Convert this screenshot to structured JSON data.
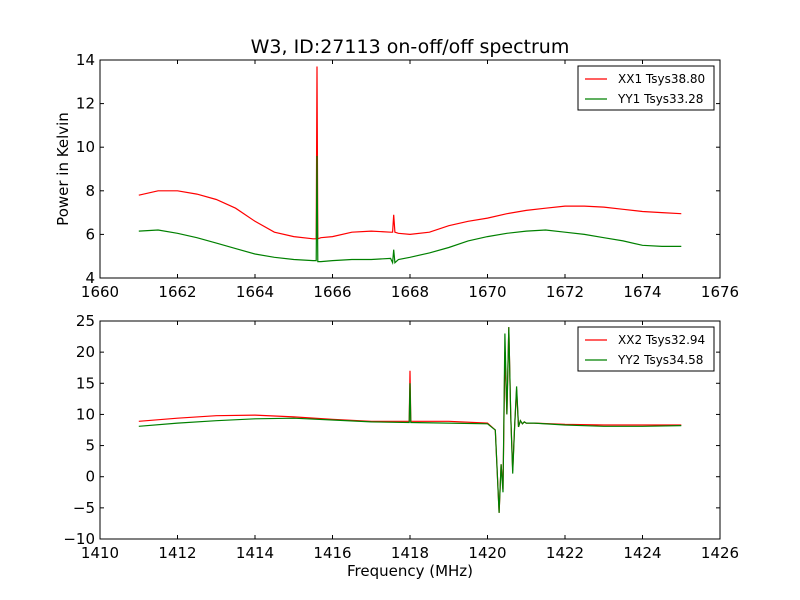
{
  "chart_data": [
    {
      "type": "line",
      "title": "W3, ID:27113 on-off/off spectrum",
      "xlabel": "",
      "ylabel": "Power in Kelvin",
      "xlim": [
        1660,
        1676
      ],
      "ylim": [
        4,
        14
      ],
      "xticks": [
        1660,
        1662,
        1664,
        1666,
        1668,
        1670,
        1672,
        1674,
        1676
      ],
      "yticks": [
        4,
        6,
        8,
        10,
        12,
        14
      ],
      "grid": false,
      "legend": "top-right",
      "series": [
        {
          "name": "XX1 Tsys38.80",
          "color": "#ff0000",
          "x": [
            1661.0,
            1661.5,
            1662.0,
            1662.5,
            1663.0,
            1663.5,
            1664.0,
            1664.5,
            1665.0,
            1665.5,
            1665.58,
            1665.6,
            1665.62,
            1665.7,
            1666.0,
            1666.5,
            1667.0,
            1667.5,
            1667.55,
            1667.58,
            1667.61,
            1667.7,
            1668.0,
            1668.5,
            1669.0,
            1669.5,
            1670.0,
            1670.5,
            1671.0,
            1671.5,
            1672.0,
            1672.5,
            1673.0,
            1673.5,
            1674.0,
            1674.5,
            1675.0
          ],
          "y": [
            7.8,
            8.0,
            8.0,
            7.85,
            7.6,
            7.2,
            6.6,
            6.1,
            5.9,
            5.8,
            5.8,
            13.7,
            5.8,
            5.85,
            5.9,
            6.1,
            6.15,
            6.1,
            6.1,
            6.9,
            6.1,
            6.05,
            6.0,
            6.1,
            6.4,
            6.6,
            6.75,
            6.95,
            7.1,
            7.2,
            7.3,
            7.3,
            7.25,
            7.15,
            7.05,
            7.0,
            6.95
          ]
        },
        {
          "name": "YY1 Tsys33.28",
          "color": "#008000",
          "x": [
            1661.0,
            1661.5,
            1662.0,
            1662.5,
            1663.0,
            1663.5,
            1664.0,
            1664.5,
            1665.0,
            1665.5,
            1665.58,
            1665.6,
            1665.62,
            1665.7,
            1666.0,
            1666.5,
            1667.0,
            1667.5,
            1667.55,
            1667.58,
            1667.61,
            1667.7,
            1668.0,
            1668.5,
            1669.0,
            1669.5,
            1670.0,
            1670.5,
            1671.0,
            1671.5,
            1672.0,
            1672.5,
            1673.0,
            1673.5,
            1674.0,
            1674.5,
            1675.0
          ],
          "y": [
            6.15,
            6.2,
            6.05,
            5.85,
            5.6,
            5.35,
            5.1,
            4.95,
            4.85,
            4.8,
            4.8,
            9.6,
            4.75,
            4.75,
            4.8,
            4.85,
            4.85,
            4.9,
            4.7,
            5.3,
            4.7,
            4.85,
            4.95,
            5.15,
            5.4,
            5.7,
            5.9,
            6.05,
            6.15,
            6.2,
            6.1,
            6.0,
            5.85,
            5.7,
            5.5,
            5.45,
            5.45
          ]
        }
      ]
    },
    {
      "type": "line",
      "title": "",
      "xlabel": "Frequency (MHz)",
      "ylabel": "",
      "xlim": [
        1410,
        1426
      ],
      "ylim": [
        -10,
        25
      ],
      "xticks": [
        1410,
        1412,
        1414,
        1416,
        1418,
        1420,
        1422,
        1424,
        1426
      ],
      "yticks": [
        -10,
        -5,
        0,
        5,
        10,
        15,
        20,
        25
      ],
      "grid": false,
      "legend": "top-right",
      "series": [
        {
          "name": "XX2 Tsys32.94",
          "color": "#ff0000",
          "x": [
            1411.0,
            1412.0,
            1413.0,
            1414.0,
            1415.0,
            1416.0,
            1417.0,
            1417.98,
            1418.0,
            1418.02,
            1419.0,
            1420.0,
            1420.2,
            1420.3,
            1420.35,
            1420.4,
            1420.45,
            1420.5,
            1420.55,
            1420.6,
            1420.65,
            1420.7,
            1420.75,
            1420.8,
            1420.85,
            1420.9,
            1420.95,
            1421.0,
            1421.2,
            1422.0,
            1423.0,
            1424.0,
            1425.0
          ],
          "y": [
            8.9,
            9.4,
            9.8,
            9.9,
            9.6,
            9.2,
            8.9,
            8.9,
            17.0,
            8.9,
            8.9,
            8.6,
            7.5,
            -5.8,
            2.0,
            -2.0,
            20.0,
            10.0,
            24.0,
            10.0,
            1.0,
            8.0,
            14.0,
            8.0,
            9.0,
            8.5,
            8.8,
            8.6,
            8.6,
            8.4,
            8.3,
            8.3,
            8.3
          ]
        },
        {
          "name": "YY2 Tsys34.58",
          "color": "#008000",
          "x": [
            1411.0,
            1412.0,
            1413.0,
            1414.0,
            1415.0,
            1416.0,
            1417.0,
            1417.98,
            1418.0,
            1418.02,
            1419.0,
            1420.0,
            1420.2,
            1420.3,
            1420.35,
            1420.4,
            1420.45,
            1420.5,
            1420.55,
            1420.6,
            1420.65,
            1420.7,
            1420.75,
            1420.8,
            1420.85,
            1420.9,
            1420.95,
            1421.0,
            1421.2,
            1422.0,
            1423.0,
            1424.0,
            1425.0
          ],
          "y": [
            8.1,
            8.6,
            9.0,
            9.3,
            9.4,
            9.1,
            8.8,
            8.7,
            15.0,
            8.7,
            8.6,
            8.5,
            7.5,
            -5.8,
            2.0,
            -2.5,
            23.0,
            10.0,
            24.0,
            10.0,
            0.5,
            8.0,
            14.5,
            8.0,
            9.0,
            8.5,
            8.8,
            8.6,
            8.6,
            8.3,
            8.1,
            8.1,
            8.2
          ]
        }
      ]
    }
  ]
}
